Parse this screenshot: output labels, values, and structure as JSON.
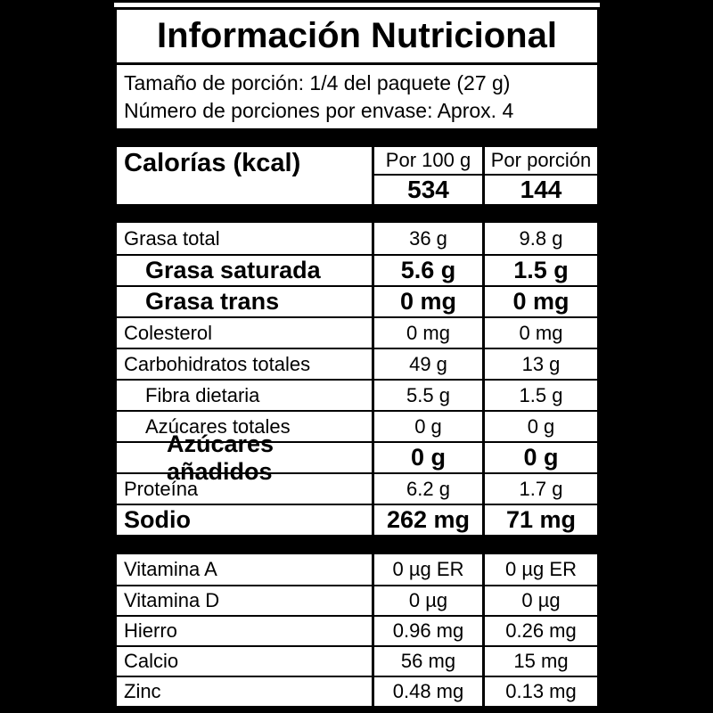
{
  "label": {
    "title": "Información Nutricional",
    "serving": {
      "size_line": "Tamaño de porción: 1/4 del paquete (27 g)",
      "count_line": "Número de porciones por envase: Aprox. 4"
    },
    "calories": {
      "label": "Calorías (kcal)",
      "col_per100": "Por 100 g",
      "col_portion": "Por porción",
      "per100": "534",
      "portion": "144"
    },
    "main_rows": [
      {
        "label": "Grasa total",
        "per100": "36 g",
        "portion": "9.8 g"
      },
      {
        "label": "Grasa saturada",
        "per100": "5.6 g",
        "portion": "1.5 g"
      },
      {
        "label": "Grasa trans",
        "per100": "0 mg",
        "portion": "0 mg"
      },
      {
        "label": "Colesterol",
        "per100": "0 mg",
        "portion": "0 mg"
      },
      {
        "label": "Carbohidratos totales",
        "per100": "49 g",
        "portion": "13 g"
      },
      {
        "label": "Fibra dietaria",
        "per100": "5.5 g",
        "portion": "1.5 g"
      },
      {
        "label": "Azúcares totales",
        "per100": "0 g",
        "portion": "0 g"
      },
      {
        "label": "Azúcares añadidos",
        "per100": "0 g",
        "portion": "0 g"
      },
      {
        "label": "Proteína",
        "per100": "6.2 g",
        "portion": "1.7 g"
      },
      {
        "label": "Sodio",
        "per100": "262 mg",
        "portion": "71 mg"
      }
    ],
    "vitamin_rows": [
      {
        "label": "Vitamina A",
        "per100": "0 µg ER",
        "portion": "0 µg ER"
      },
      {
        "label": "Vitamina D",
        "per100": "0 µg",
        "portion": "0 µg"
      },
      {
        "label": "Hierro",
        "per100": "0.96 mg",
        "portion": "0.26 mg"
      },
      {
        "label": "Calcio",
        "per100": "56 mg",
        "portion": "15 mg"
      },
      {
        "label": "Zinc",
        "per100": "0.48 mg",
        "portion": "0.13 mg"
      }
    ],
    "colors": {
      "page_background": "#000000",
      "panel_background": "#ffffff",
      "text": "#000000",
      "border": "#000000"
    }
  }
}
